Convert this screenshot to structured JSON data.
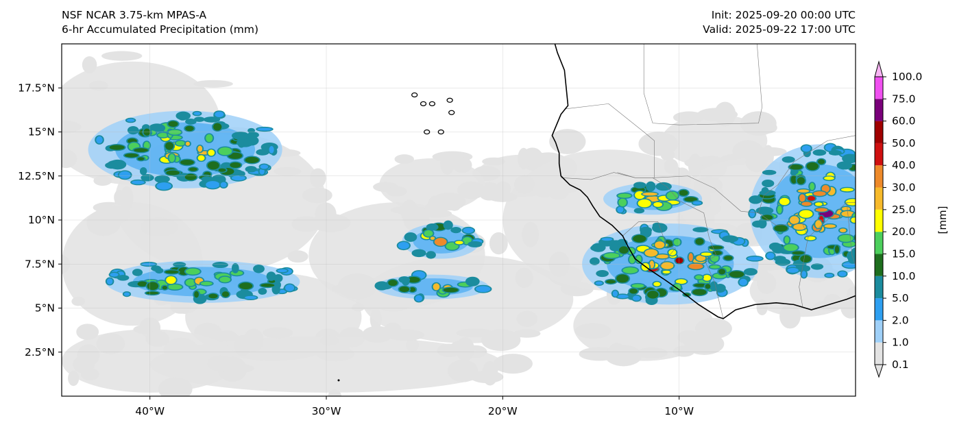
{
  "header": {
    "model": "NSF NCAR 3.75-km MPAS-A",
    "field": "6-hr Accumulated Precipitation (mm)",
    "init": "Init: 2025-09-20 00:00 UTC",
    "valid": "Valid: 2025-09-22 17:00 UTC"
  },
  "map": {
    "lon_range": [
      -45,
      0
    ],
    "lat_range": [
      0,
      20
    ],
    "x_ticks": [
      {
        "lon": -40,
        "label": "40°W"
      },
      {
        "lon": -30,
        "label": "30°W"
      },
      {
        "lon": -20,
        "label": "20°W"
      },
      {
        "lon": -10,
        "label": "10°W"
      }
    ],
    "y_ticks": [
      {
        "lat": 2.5,
        "label": "2.5°N"
      },
      {
        "lat": 5,
        "label": "5°N"
      },
      {
        "lat": 7.5,
        "label": "7.5°N"
      },
      {
        "lat": 10,
        "label": "10°N"
      },
      {
        "lat": 12.5,
        "label": "12.5°N"
      },
      {
        "lat": 15,
        "label": "15°N"
      },
      {
        "lat": 17.5,
        "label": "17.5°N"
      }
    ],
    "gridlines": true
  },
  "colorbar": {
    "unit_label": "[mm]",
    "levels": [
      "0.1",
      "1.0",
      "2.0",
      "5.0",
      "10.0",
      "15.0",
      "20.0",
      "25.0",
      "30.0",
      "40.0",
      "50.0",
      "60.0",
      "75.0",
      "100.0"
    ],
    "colors": [
      "#e3e3e3",
      "#9fd0f8",
      "#2e9ff0",
      "#1b8c9e",
      "#1e6e1e",
      "#4ccf5c",
      "#ffff00",
      "#f7ba2b",
      "#ee8a2a",
      "#cf1010",
      "#a00000",
      "#7a007a",
      "#f050f0"
    ],
    "extend": "both"
  },
  "precip_systems": [
    {
      "name": "northwest-cluster",
      "lon": -38,
      "lat": 14,
      "rx": 5.5,
      "ry": 2.2,
      "max_level": 8
    },
    {
      "name": "west-band-south",
      "lon": -37,
      "lat": 6.5,
      "rx": 5.5,
      "ry": 1.2,
      "max_level": 8
    },
    {
      "name": "central-cells-north",
      "lon": -23.5,
      "lat": 8.8,
      "rx": 2.2,
      "ry": 1.0,
      "max_level": 10
    },
    {
      "name": "central-cells-south",
      "lon": -24,
      "lat": 6.2,
      "rx": 3.2,
      "ry": 0.7,
      "max_level": 9
    },
    {
      "name": "coastal-west-africa",
      "lon": -10.5,
      "lat": 7.5,
      "rx": 5.0,
      "ry": 2.3,
      "max_level": 11
    },
    {
      "name": "interior-west-africa",
      "lon": -11.5,
      "lat": 11.2,
      "rx": 2.8,
      "ry": 0.9,
      "max_level": 10
    },
    {
      "name": "eastern-mcs",
      "lon": -2,
      "lat": 10.5,
      "rx": 4.0,
      "ry": 3.8,
      "max_level": 11
    }
  ]
}
